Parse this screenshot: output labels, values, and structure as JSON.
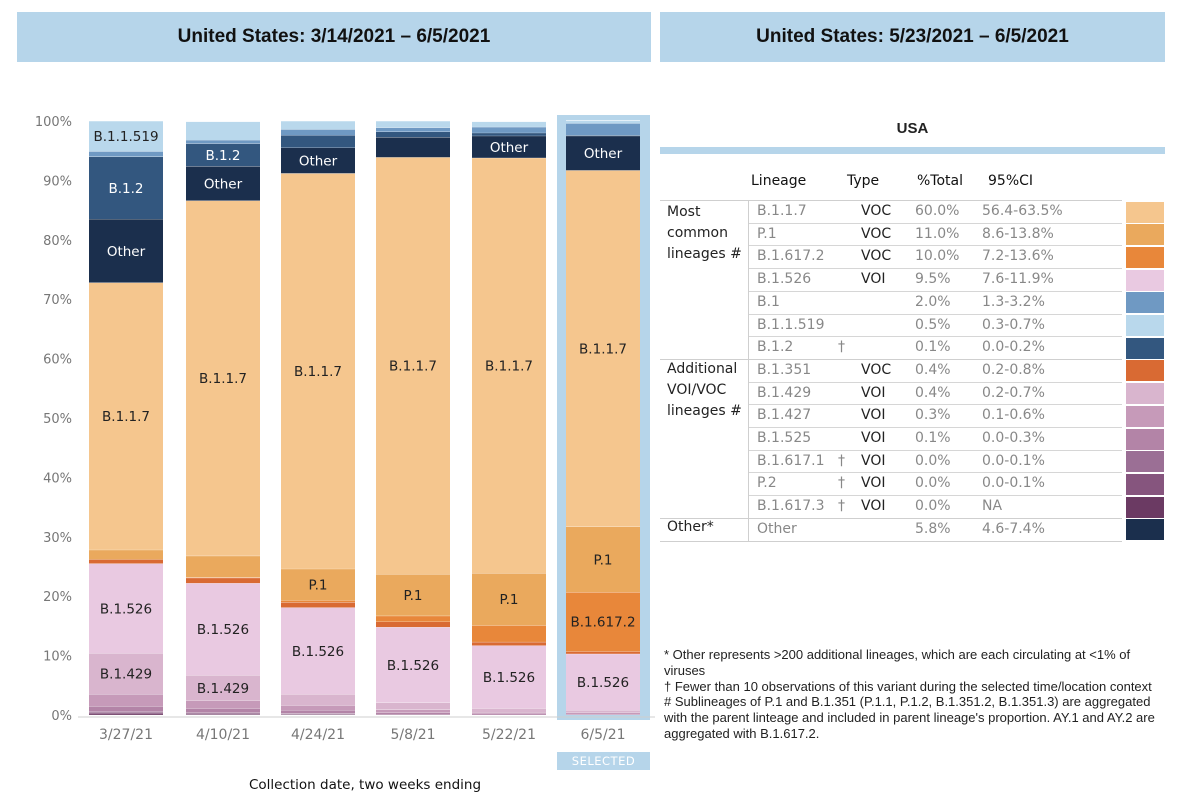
{
  "header": {
    "left_title": "United States: 3/14/2021 – 6/5/2021",
    "right_title": "United States: 5/23/2021 – 6/5/2021"
  },
  "chart_data": {
    "type": "bar",
    "stacked": true,
    "normalized": true,
    "x_title": "Collection date, two weeks ending",
    "ylim": [
      0,
      100
    ],
    "y_ticks": [
      "0%",
      "10%",
      "20%",
      "30%",
      "40%",
      "50%",
      "60%",
      "70%",
      "80%",
      "90%",
      "100%"
    ],
    "categories": [
      "3/27/21",
      "4/10/21",
      "4/24/21",
      "5/8/21",
      "5/22/21",
      "6/5/21"
    ],
    "selected_category": "6/5/21",
    "selected_label": "SELECTED",
    "series_stack_order_bottom_to_top": [
      "B.1.617.3",
      "P.2",
      "B.1.617.1",
      "B.1.525",
      "B.1.427",
      "B.1.429",
      "B.1.526",
      "B.1.351",
      "B.1.617.2",
      "P.1",
      "B.1.1.7",
      "Other",
      "B.1.2",
      "B.1",
      "B.1.1.519"
    ],
    "series": [
      {
        "name": "B.1.617.3",
        "color": "#6b3a63",
        "values": [
          0.2,
          0.1,
          0.1,
          0.0,
          0.0,
          0.0
        ]
      },
      {
        "name": "P.2",
        "color": "#86557e",
        "values": [
          0.3,
          0.2,
          0.1,
          0.1,
          0.0,
          0.0
        ]
      },
      {
        "name": "B.1.617.1",
        "color": "#9b6f95",
        "values": [
          0.1,
          0.1,
          0.1,
          0.0,
          0.0,
          0.0
        ]
      },
      {
        "name": "B.1.525",
        "color": "#b384a7",
        "values": [
          0.9,
          0.7,
          0.5,
          0.3,
          0.2,
          0.1
        ]
      },
      {
        "name": "B.1.427",
        "color": "#c69ab9",
        "values": [
          2.0,
          1.3,
          0.8,
          0.5,
          0.3,
          0.3
        ]
      },
      {
        "name": "B.1.429",
        "color": "#d9b5ce",
        "values": [
          6.9,
          4.3,
          1.9,
          1.2,
          0.6,
          0.4
        ]
      },
      {
        "name": "B.1.526",
        "color": "#e9c9e1",
        "values": [
          15.1,
          15.5,
          14.6,
          12.7,
          10.6,
          9.5
        ]
      },
      {
        "name": "B.1.351",
        "color": "#d96a33",
        "values": [
          0.7,
          0.9,
          0.9,
          0.9,
          0.6,
          0.4
        ]
      },
      {
        "name": "B.1.617.2",
        "color": "#e8873a",
        "values": [
          0.0,
          0.1,
          0.3,
          1.0,
          2.8,
          10.0
        ]
      },
      {
        "name": "P.1",
        "color": "#eaa95d",
        "values": [
          1.6,
          3.6,
          5.3,
          7.0,
          8.8,
          11.0
        ]
      },
      {
        "name": "B.1.1.7",
        "color": "#f5c68e",
        "values": [
          45.0,
          59.8,
          66.6,
          70.2,
          69.9,
          60.0
        ]
      },
      {
        "name": "Other",
        "color": "#1b2f4d",
        "values": [
          10.7,
          5.8,
          4.3,
          3.4,
          3.7,
          5.8
        ]
      },
      {
        "name": "B.1.2",
        "color": "#33577f",
        "values": [
          10.5,
          3.8,
          2.1,
          0.9,
          0.5,
          0.1
        ]
      },
      {
        "name": "B.1",
        "color": "#6f99c3",
        "values": [
          0.9,
          0.6,
          1.0,
          0.7,
          1.0,
          2.0
        ]
      },
      {
        "name": "B.1.1.519",
        "color": "#b9d8ec",
        "values": [
          5.1,
          3.1,
          1.4,
          1.1,
          0.9,
          0.5
        ]
      }
    ],
    "segment_labels": [
      {
        "bar": 0,
        "series": "B.1.1.519",
        "text": "B.1.1.519"
      },
      {
        "bar": 0,
        "series": "B.1.2",
        "text": "B.1.2"
      },
      {
        "bar": 0,
        "series": "Other",
        "text": "Other"
      },
      {
        "bar": 0,
        "series": "B.1.1.7",
        "text": "B.1.1.7"
      },
      {
        "bar": 0,
        "series": "B.1.526",
        "text": "B.1.526"
      },
      {
        "bar": 0,
        "series": "B.1.429",
        "text": "B.1.429"
      },
      {
        "bar": 1,
        "series": "B.1.2",
        "text": "B.1.2"
      },
      {
        "bar": 1,
        "series": "Other",
        "text": "Other"
      },
      {
        "bar": 1,
        "series": "B.1.1.7",
        "text": "B.1.1.7"
      },
      {
        "bar": 1,
        "series": "B.1.526",
        "text": "B.1.526"
      },
      {
        "bar": 1,
        "series": "B.1.429",
        "text": "B.1.429"
      },
      {
        "bar": 2,
        "series": "Other",
        "text": "Other"
      },
      {
        "bar": 2,
        "series": "B.1.1.7",
        "text": "B.1.1.7"
      },
      {
        "bar": 2,
        "series": "P.1",
        "text": "P.1"
      },
      {
        "bar": 2,
        "series": "B.1.526",
        "text": "B.1.526"
      },
      {
        "bar": 3,
        "series": "B.1.1.7",
        "text": "B.1.1.7"
      },
      {
        "bar": 3,
        "series": "P.1",
        "text": "P.1"
      },
      {
        "bar": 3,
        "series": "B.1.526",
        "text": "B.1.526"
      },
      {
        "bar": 4,
        "series": "Other",
        "text": "Other"
      },
      {
        "bar": 4,
        "series": "B.1.1.7",
        "text": "B.1.1.7"
      },
      {
        "bar": 4,
        "series": "P.1",
        "text": "P.1"
      },
      {
        "bar": 4,
        "series": "B.1.526",
        "text": "B.1.526"
      },
      {
        "bar": 5,
        "series": "Other",
        "text": "Other"
      },
      {
        "bar": 5,
        "series": "B.1.1.7",
        "text": "B.1.1.7"
      },
      {
        "bar": 5,
        "series": "P.1",
        "text": "P.1"
      },
      {
        "bar": 5,
        "series": "B.1.617.2",
        "text": "B.1.617.2"
      },
      {
        "bar": 5,
        "series": "B.1.526",
        "text": "B.1.526"
      }
    ],
    "dark_label_series": [
      "Other",
      "B.1.2"
    ]
  },
  "table": {
    "title": "USA",
    "columns": {
      "lineage": "Lineage",
      "type": "Type",
      "pct": "%Total",
      "ci": "95%CI"
    },
    "groups": {
      "most_common": "Most common lineages #",
      "additional": "Additional VOI/VOC lineages #",
      "other": "Other*"
    },
    "rows": [
      {
        "lineage": "B.1.1.7",
        "dagger": "",
        "type": "VOC",
        "pct": "60.0%",
        "ci": "56.4-63.5%",
        "color": "#f5c68e"
      },
      {
        "lineage": "P.1",
        "dagger": "",
        "type": "VOC",
        "pct": "11.0%",
        "ci": "8.6-13.8%",
        "color": "#eaa95d"
      },
      {
        "lineage": "B.1.617.2",
        "dagger": "",
        "type": "VOC",
        "pct": "10.0%",
        "ci": "7.2-13.6%",
        "color": "#e8873a"
      },
      {
        "lineage": "B.1.526",
        "dagger": "",
        "type": "VOI",
        "pct": "9.5%",
        "ci": "7.6-11.9%",
        "color": "#e9c9e1"
      },
      {
        "lineage": "B.1",
        "dagger": "",
        "type": "",
        "pct": "2.0%",
        "ci": "1.3-3.2%",
        "color": "#6f99c3"
      },
      {
        "lineage": "B.1.1.519",
        "dagger": "",
        "type": "",
        "pct": "0.5%",
        "ci": "0.3-0.7%",
        "color": "#b9d8ec"
      },
      {
        "lineage": "B.1.2",
        "dagger": "†",
        "type": "",
        "pct": "0.1%",
        "ci": "0.0-0.2%",
        "color": "#33577f"
      },
      {
        "lineage": "B.1.351",
        "dagger": "",
        "type": "VOC",
        "pct": "0.4%",
        "ci": "0.2-0.8%",
        "color": "#d96a33"
      },
      {
        "lineage": "B.1.429",
        "dagger": "",
        "type": "VOI",
        "pct": "0.4%",
        "ci": "0.2-0.7%",
        "color": "#d9b5ce"
      },
      {
        "lineage": "B.1.427",
        "dagger": "",
        "type": "VOI",
        "pct": "0.3%",
        "ci": "0.1-0.6%",
        "color": "#c69ab9"
      },
      {
        "lineage": "B.1.525",
        "dagger": "",
        "type": "VOI",
        "pct": "0.1%",
        "ci": "0.0-0.3%",
        "color": "#b384a7"
      },
      {
        "lineage": "B.1.617.1",
        "dagger": "†",
        "type": "VOI",
        "pct": "0.0%",
        "ci": "0.0-0.1%",
        "color": "#9b6f95"
      },
      {
        "lineage": "P.2",
        "dagger": "†",
        "type": "VOI",
        "pct": "0.0%",
        "ci": "0.0-0.1%",
        "color": "#86557e"
      },
      {
        "lineage": "B.1.617.3",
        "dagger": "†",
        "type": "VOI",
        "pct": "0.0%",
        "ci": "NA",
        "color": "#6b3a63"
      },
      {
        "lineage": "Other",
        "dagger": "",
        "type": "",
        "pct": "5.8%",
        "ci": "4.6-7.4%",
        "color": "#1b2f4d"
      }
    ]
  },
  "footnotes": {
    "other": "*      Other represents >200 additional lineages, which are each circulating at <1% of viruses",
    "dagger": "†    Fewer than 10 observations of this variant during the selected time/location context",
    "hash": "#      Sublineages of P.1 and B.1.351 (P.1.1,  P.1.2, B.1.351.2, B.1.351.3) are aggregated with the parent linteage and included in parent lineage's proportion. AY.1 and AY.2 are aggregated with B.1.617.2."
  }
}
